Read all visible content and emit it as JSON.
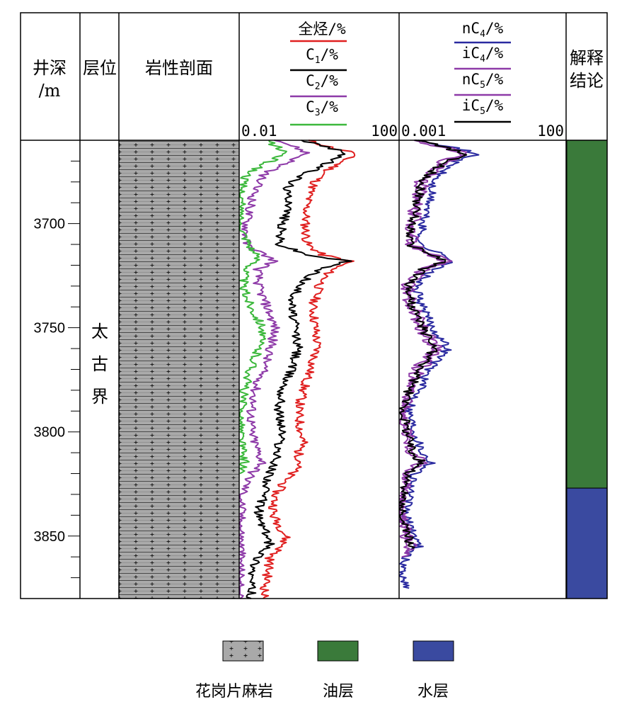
{
  "headers": {
    "depth": [
      "井深",
      "/m"
    ],
    "formation": "层位",
    "lithology": "岩性剖面",
    "interpretation": [
      "解释",
      "结论"
    ]
  },
  "formation_name": [
    "太",
    "古",
    "界"
  ],
  "track1": {
    "curves": [
      {
        "base": "全烃",
        "sub": "",
        "unit": "/%",
        "color": "#e02020"
      },
      {
        "base": "C",
        "sub": "1",
        "unit": "/%",
        "color": "#000000"
      },
      {
        "base": "C",
        "sub": "2",
        "unit": "/%",
        "color": "#8e3aa8"
      },
      {
        "base": "C",
        "sub": "3",
        "unit": "/%",
        "color": "#3cb83c"
      }
    ],
    "scale_min": "0.01",
    "scale_max": "100"
  },
  "track2": {
    "curves": [
      {
        "base": "nC",
        "sub": "4",
        "unit": "/%",
        "color": "#2a2aa0"
      },
      {
        "base": "iC",
        "sub": "4",
        "unit": "/%",
        "color": "#8e3aa8"
      },
      {
        "base": "nC",
        "sub": "5",
        "unit": "/%",
        "color": "#8e3aa8"
      },
      {
        "base": "iC",
        "sub": "5",
        "unit": "/%",
        "color": "#000000"
      }
    ],
    "scale_min": "0.001",
    "scale_max": "100"
  },
  "legend": [
    {
      "label": "花岗片麻岩",
      "kind": "granite-gneiss"
    },
    {
      "label": "油层",
      "kind": "oil",
      "color": "#3a7a3a"
    },
    {
      "label": "水层",
      "kind": "water",
      "color": "#3a4aa0"
    }
  ],
  "chart_data": {
    "type": "line",
    "title": "",
    "depth_axis": {
      "label": "井深/m",
      "range": [
        3660,
        3880
      ],
      "ticks": [
        3700,
        3750,
        3800,
        3850
      ],
      "minor_step": 10
    },
    "lithology": [
      {
        "from": 3660,
        "to": 3880,
        "rock": "花岗片麻岩"
      }
    ],
    "formation": [
      {
        "from": 3660,
        "to": 3880,
        "name": "太古界"
      }
    ],
    "interpretation": [
      {
        "from": 3660,
        "to": 3827,
        "result": "油层",
        "color": "#3a7a3a"
      },
      {
        "from": 3827,
        "to": 3880,
        "result": "水层",
        "color": "#3a4aa0"
      }
    ],
    "track1": {
      "xscale": "log",
      "xlim": [
        0.01,
        100
      ],
      "series": [
        {
          "name": "全烃",
          "color": "#e02020",
          "points": [
            [
              3660,
              0.5
            ],
            [
              3664,
              2.5
            ],
            [
              3666,
              8
            ],
            [
              3670,
              4
            ],
            [
              3675,
              1.5
            ],
            [
              3680,
              0.8
            ],
            [
              3685,
              0.6
            ],
            [
              3690,
              0.5
            ],
            [
              3700,
              0.45
            ],
            [
              3710,
              0.5
            ],
            [
              3715,
              1.2
            ],
            [
              3718,
              6
            ],
            [
              3722,
              2
            ],
            [
              3730,
              1
            ],
            [
              3740,
              0.7
            ],
            [
              3750,
              0.8
            ],
            [
              3760,
              0.9
            ],
            [
              3770,
              0.6
            ],
            [
              3780,
              0.4
            ],
            [
              3790,
              0.3
            ],
            [
              3800,
              0.35
            ],
            [
              3805,
              0.4
            ],
            [
              3810,
              0.3
            ],
            [
              3815,
              0.35
            ],
            [
              3820,
              0.2
            ],
            [
              3830,
              0.08
            ],
            [
              3840,
              0.07
            ],
            [
              3850,
              0.15
            ],
            [
              3855,
              0.12
            ],
            [
              3860,
              0.06
            ],
            [
              3870,
              0.05
            ],
            [
              3880,
              0.04
            ]
          ]
        },
        {
          "name": "C1",
          "color": "#000000",
          "points": [
            [
              3660,
              0.4
            ],
            [
              3664,
              2
            ],
            [
              3666,
              5
            ],
            [
              3670,
              2
            ],
            [
              3675,
              0.6
            ],
            [
              3680,
              0.2
            ],
            [
              3685,
              0.15
            ],
            [
              3690,
              0.2
            ],
            [
              3700,
              0.12
            ],
            [
              3710,
              0.1
            ],
            [
              3715,
              0.5
            ],
            [
              3718,
              5
            ],
            [
              3722,
              1
            ],
            [
              3730,
              0.3
            ],
            [
              3740,
              0.2
            ],
            [
              3750,
              0.25
            ],
            [
              3760,
              0.3
            ],
            [
              3770,
              0.2
            ],
            [
              3780,
              0.12
            ],
            [
              3790,
              0.1
            ],
            [
              3800,
              0.12
            ],
            [
              3810,
              0.09
            ],
            [
              3820,
              0.06
            ],
            [
              3830,
              0.04
            ],
            [
              3840,
              0.03
            ],
            [
              3850,
              0.05
            ],
            [
              3855,
              0.06
            ],
            [
              3860,
              0.03
            ],
            [
              3870,
              0.02
            ],
            [
              3880,
              0.02
            ]
          ]
        },
        {
          "name": "C2",
          "color": "#8e3aa8",
          "points": [
            [
              3660,
              0.1
            ],
            [
              3664,
              0.3
            ],
            [
              3666,
              0.5
            ],
            [
              3670,
              0.2
            ],
            [
              3675,
              0.05
            ],
            [
              3680,
              0.03
            ],
            [
              3690,
              0.02
            ],
            [
              3700,
              0.015
            ],
            [
              3710,
              0.015
            ],
            [
              3718,
              0.08
            ],
            [
              3722,
              0.03
            ],
            [
              3730,
              0.03
            ],
            [
              3740,
              0.05
            ],
            [
              3750,
              0.08
            ],
            [
              3760,
              0.06
            ],
            [
              3770,
              0.04
            ],
            [
              3780,
              0.025
            ],
            [
              3790,
              0.02
            ],
            [
              3800,
              0.02
            ],
            [
              3810,
              0.03
            ],
            [
              3815,
              0.04
            ],
            [
              3820,
              0.02
            ],
            [
              3830,
              0.012
            ],
            [
              3840,
              0.011
            ],
            [
              3855,
              0.011
            ],
            [
              3880,
              0.01
            ]
          ]
        },
        {
          "name": "C3",
          "color": "#3cb83c",
          "points": [
            [
              3660,
              0.05
            ],
            [
              3664,
              0.1
            ],
            [
              3666,
              0.15
            ],
            [
              3670,
              0.06
            ],
            [
              3675,
              0.02
            ],
            [
              3680,
              0.012
            ],
            [
              3690,
              0.011
            ],
            [
              3700,
              0.01
            ],
            [
              3718,
              0.03
            ],
            [
              3722,
              0.015
            ],
            [
              3730,
              0.012
            ],
            [
              3740,
              0.02
            ],
            [
              3750,
              0.04
            ],
            [
              3760,
              0.03
            ],
            [
              3770,
              0.02
            ],
            [
              3780,
              0.013
            ],
            [
              3790,
              0.011
            ],
            [
              3800,
              0.011
            ],
            [
              3810,
              0.012
            ],
            [
              3815,
              0.014
            ],
            [
              3820,
              0.01
            ]
          ]
        }
      ]
    },
    "track2": {
      "xscale": "log",
      "xlim": [
        0.001,
        100
      ],
      "series": [
        {
          "name": "nC4",
          "color": "#2a2aa0",
          "points": [
            [
              3660,
              0.005
            ],
            [
              3665,
              0.1
            ],
            [
              3667,
              0.2
            ],
            [
              3670,
              0.05
            ],
            [
              3675,
              0.02
            ],
            [
              3680,
              0.01
            ],
            [
              3690,
              0.008
            ],
            [
              3700,
              0.005
            ],
            [
              3710,
              0.004
            ],
            [
              3718,
              0.05
            ],
            [
              3722,
              0.01
            ],
            [
              3730,
              0.003
            ],
            [
              3740,
              0.005
            ],
            [
              3750,
              0.01
            ],
            [
              3760,
              0.03
            ],
            [
              3770,
              0.008
            ],
            [
              3780,
              0.004
            ],
            [
              3790,
              0.002
            ],
            [
              3800,
              0.003
            ],
            [
              3810,
              0.005
            ],
            [
              3815,
              0.01
            ],
            [
              3820,
              0.003
            ],
            [
              3830,
              0.002
            ],
            [
              3840,
              0.0015
            ],
            [
              3850,
              0.003
            ],
            [
              3855,
              0.004
            ],
            [
              3860,
              0.0015
            ],
            [
              3870,
              0.0012
            ],
            [
              3875,
              0.002
            ]
          ]
        },
        {
          "name": "iC4",
          "color": "#8e3aa8",
          "points": [
            [
              3660,
              0.004
            ],
            [
              3665,
              0.06
            ],
            [
              3667,
              0.12
            ],
            [
              3670,
              0.03
            ],
            [
              3675,
              0.012
            ],
            [
              3680,
              0.006
            ],
            [
              3690,
              0.004
            ],
            [
              3700,
              0.003
            ],
            [
              3710,
              0.0025
            ],
            [
              3718,
              0.03
            ],
            [
              3722,
              0.006
            ],
            [
              3730,
              0.002
            ],
            [
              3740,
              0.003
            ],
            [
              3750,
              0.006
            ],
            [
              3760,
              0.015
            ],
            [
              3770,
              0.005
            ],
            [
              3780,
              0.0025
            ],
            [
              3790,
              0.0015
            ],
            [
              3800,
              0.002
            ],
            [
              3810,
              0.003
            ],
            [
              3815,
              0.006
            ],
            [
              3820,
              0.002
            ],
            [
              3830,
              0.0015
            ],
            [
              3840,
              0.0012
            ],
            [
              3850,
              0.002
            ],
            [
              3855,
              0.003
            ],
            [
              3860,
              0.0012
            ]
          ]
        },
        {
          "name": "nC5",
          "color": "#8e3aa8",
          "points": [
            [
              3660,
              0.003
            ],
            [
              3665,
              0.04
            ],
            [
              3667,
              0.08
            ],
            [
              3670,
              0.02
            ],
            [
              3675,
              0.008
            ],
            [
              3680,
              0.004
            ],
            [
              3690,
              0.003
            ],
            [
              3700,
              0.002
            ],
            [
              3710,
              0.002
            ],
            [
              3718,
              0.02
            ],
            [
              3722,
              0.004
            ],
            [
              3730,
              0.0015
            ],
            [
              3740,
              0.002
            ],
            [
              3750,
              0.004
            ],
            [
              3760,
              0.01
            ],
            [
              3770,
              0.003
            ],
            [
              3780,
              0.002
            ],
            [
              3790,
              0.0012
            ],
            [
              3800,
              0.0015
            ],
            [
              3810,
              0.002
            ],
            [
              3815,
              0.004
            ],
            [
              3820,
              0.0015
            ],
            [
              3830,
              0.0012
            ],
            [
              3840,
              0.0011
            ],
            [
              3850,
              0.0015
            ],
            [
              3858,
              0.002
            ]
          ]
        },
        {
          "name": "iC5",
          "color": "#000000",
          "points": [
            [
              3660,
              0.004
            ],
            [
              3665,
              0.05
            ],
            [
              3667,
              0.1
            ],
            [
              3670,
              0.025
            ],
            [
              3675,
              0.01
            ],
            [
              3680,
              0.005
            ],
            [
              3690,
              0.0035
            ],
            [
              3700,
              0.0025
            ],
            [
              3710,
              0.002
            ],
            [
              3718,
              0.025
            ],
            [
              3722,
              0.005
            ],
            [
              3730,
              0.0018
            ],
            [
              3740,
              0.0025
            ],
            [
              3750,
              0.005
            ],
            [
              3760,
              0.012
            ],
            [
              3770,
              0.004
            ],
            [
              3780,
              0.002
            ],
            [
              3790,
              0.0013
            ],
            [
              3800,
              0.0018
            ],
            [
              3810,
              0.0025
            ],
            [
              3815,
              0.005
            ],
            [
              3820,
              0.0018
            ],
            [
              3830,
              0.0013
            ],
            [
              3840,
              0.0011
            ],
            [
              3850,
              0.0018
            ],
            [
              3856,
              0.0025
            ]
          ]
        }
      ]
    }
  }
}
